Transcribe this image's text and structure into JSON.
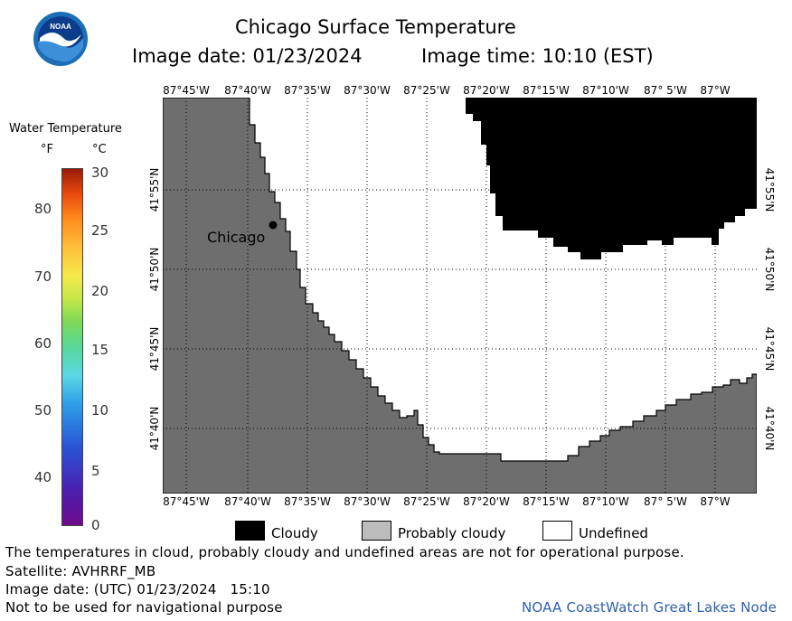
{
  "header": {
    "title": "Chicago Surface Temperature",
    "image_date": "Image date: 01/23/2024",
    "image_time": "Image time: 10:10 (EST)"
  },
  "logo": {
    "text": "NOAA",
    "icon": "noaa-logo-icon",
    "colors": {
      "ring": "#1c6fb7",
      "bird": "#ffffff",
      "sky": "#0b3d8c"
    }
  },
  "legend": {
    "title": "Water Temperature",
    "unit_f": "°F",
    "unit_c": "°C",
    "f_ticks": [
      "80",
      "70",
      "60",
      "50",
      "40"
    ],
    "c_ticks": [
      "30",
      "25",
      "20",
      "15",
      "10",
      "5",
      "0"
    ]
  },
  "map": {
    "lon_labels": [
      "87°45'W",
      "87°40'W",
      "87°35'W",
      "87°30'W",
      "87°25'W",
      "87°20'W",
      "87°15'W",
      "87°10'W",
      "87° 5'W",
      "87°W"
    ],
    "lat_labels": [
      "41°55'N",
      "41°50'N",
      "41°45'N",
      "41°40'N"
    ],
    "place_label": "Chicago",
    "colors": {
      "land": "#6e6e6e",
      "cloudy": "#000000",
      "undefined": "#ffffff",
      "probably_cloudy": "#bcbcbc"
    }
  },
  "key": {
    "cloudy": "Cloudy",
    "probably_cloudy": "Probably cloudy",
    "undefined": "Undefined"
  },
  "footer": {
    "disclaimer": "The temperatures in cloud, probably cloudy and undefined areas are not for operational purpose.",
    "satellite": "Satellite: AVHRRF_MB",
    "utc_date": "Image date: (UTC) 01/23/2024   15:10",
    "navigation": "Not to be used for navigational purpose",
    "credit": "NOAA CoastWatch Great Lakes Node"
  }
}
